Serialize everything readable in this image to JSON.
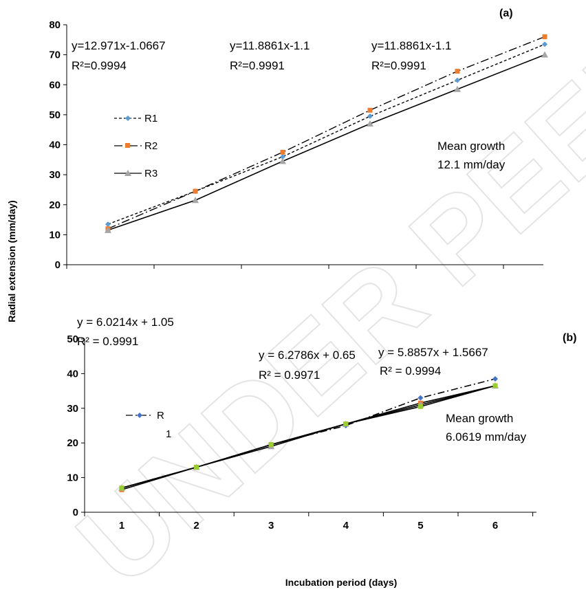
{
  "y_axis_label": "Radial extension (mm/day)",
  "x_axis_label": "Incubation period (days)",
  "watermark": "UNDER PEER REVIEW",
  "chart_data": [
    {
      "panel": "(a)",
      "type": "line",
      "x": [
        1,
        2,
        3,
        4,
        5,
        6
      ],
      "ylim": [
        0,
        80
      ],
      "yticks": [
        "0",
        "10",
        "20",
        "30",
        "40",
        "50",
        "60",
        "70",
        "80"
      ],
      "series": [
        {
          "name": "R1",
          "color": "#5b9bd5",
          "marker": "diamond",
          "dash": "4,3",
          "values": [
            13.5,
            24.5,
            36.0,
            49.5,
            61.5,
            73.5
          ]
        },
        {
          "name": "R2",
          "color": "#ed7d31",
          "marker": "square",
          "dash": "12,4,2,4",
          "values": [
            12.0,
            24.5,
            37.5,
            51.5,
            64.5,
            76.0
          ]
        },
        {
          "name": "R3",
          "color": "#a5a5a5",
          "marker": "triangle",
          "dash": "",
          "values": [
            11.5,
            21.5,
            34.5,
            47.0,
            58.5,
            70.0
          ]
        }
      ],
      "equations": [
        {
          "eq": "y=12.971x-1.0667",
          "r2": "R²=0.9994"
        },
        {
          "eq": "y=11.8861x-1.1",
          "r2": "R²=0.9991"
        },
        {
          "eq": "y=11.8861x-1.1",
          "r2": "R²=0.9991"
        }
      ],
      "annotation": {
        "line1": "Mean growth",
        "line2": "12.1 mm/day"
      }
    },
    {
      "panel": "(b)",
      "type": "line",
      "x": [
        1,
        2,
        3,
        4,
        5,
        6
      ],
      "xticks": [
        "1",
        "2",
        "3",
        "4",
        "5",
        "6"
      ],
      "ylim": [
        0,
        50
      ],
      "yticks": [
        "0",
        "10",
        "20",
        "30",
        "40",
        "50"
      ],
      "series": [
        {
          "name": "R1",
          "color": "#4472c4",
          "marker": "diamond",
          "dash": "10,4,2,4",
          "values": [
            7.0,
            13.0,
            19.5,
            25.0,
            33.0,
            38.5
          ]
        },
        {
          "name": "",
          "color": "#ed7d31",
          "marker": "square",
          "dash": "",
          "values": [
            6.5,
            13.0,
            19.5,
            25.5,
            31.5,
            36.5
          ]
        },
        {
          "name": "",
          "color": "#a5a5a5",
          "marker": "triangle",
          "dash": "",
          "values": [
            7.0,
            13.0,
            19.0,
            25.5,
            31.0,
            36.5
          ]
        },
        {
          "name": "",
          "color": "#9acd32",
          "marker": "square",
          "dash": "",
          "values": [
            7.0,
            13.0,
            19.5,
            25.5,
            30.5,
            36.5
          ]
        }
      ],
      "legend_text": {
        "part1": "R",
        "part2": "1"
      },
      "equations": [
        {
          "eq": "y = 6.0214x + 1.05",
          "r2": "R² = 0.9991"
        },
        {
          "eq": "y = 6.2786x + 0.65",
          "r2": "R² = 0.9971"
        },
        {
          "eq": "y = 5.8857x + 1.5667",
          "r2": "R² = 0.9994"
        }
      ],
      "annotation": {
        "line1": "Mean growth",
        "line2": "6.0619 mm/day"
      }
    }
  ]
}
